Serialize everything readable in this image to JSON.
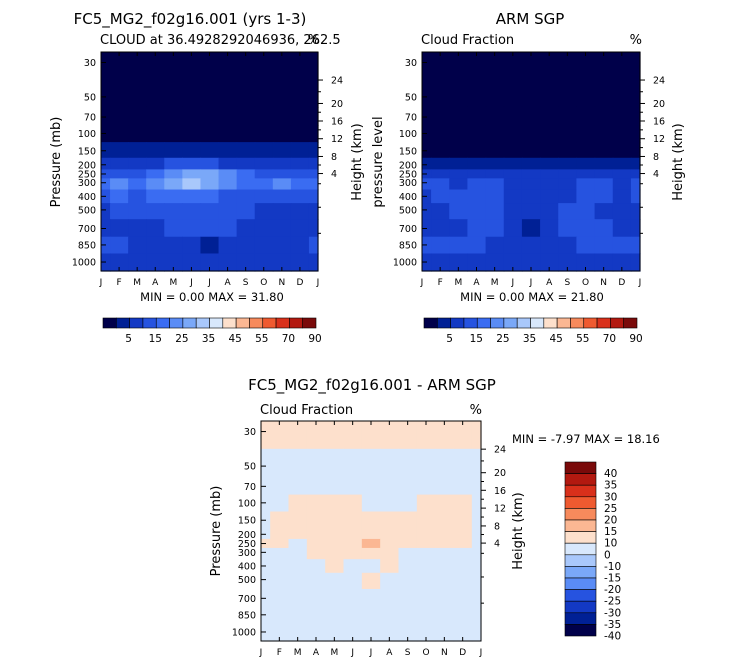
{
  "chart_data": [
    {
      "type": "heatmap",
      "title": "FC5_MG2_f02g16.001 (yrs 1-3)",
      "subtitle": "CLOUD at 36.4928292046936, 262.5",
      "units": "%",
      "xlabel": "",
      "ylabel": "Pressure (mb)",
      "ylabel_right": "Height (km)",
      "x_ticks": [
        "J",
        "F",
        "M",
        "A",
        "M",
        "J",
        "J",
        "A",
        "S",
        "O",
        "N",
        "D",
        "J"
      ],
      "y_ticks": [
        "30",
        "50",
        "70",
        "100",
        "150",
        "200",
        "250",
        "300",
        "400",
        "500",
        "700",
        "850",
        "1000"
      ],
      "y_ticks_right": [
        "24",
        "20",
        "16",
        "12",
        "8",
        "4"
      ],
      "footer": "MIN =   0.00 MAX =  31.80",
      "colorbar_labels": [
        "5",
        "15",
        "25",
        "35",
        "45",
        "55",
        "70",
        "90"
      ]
    },
    {
      "type": "heatmap",
      "title": "ARM SGP",
      "subtitle": "Cloud Fraction",
      "units": "%",
      "xlabel": "",
      "ylabel": "pressure level",
      "ylabel_right": "Height (km)",
      "x_ticks": [
        "J",
        "F",
        "M",
        "A",
        "M",
        "J",
        "J",
        "A",
        "S",
        "O",
        "N",
        "D",
        "J"
      ],
      "y_ticks": [
        "30",
        "50",
        "70",
        "100",
        "150",
        "200",
        "250",
        "300",
        "400",
        "500",
        "700",
        "850",
        "1000"
      ],
      "y_ticks_right": [
        "24",
        "20",
        "16",
        "12",
        "8",
        "4"
      ],
      "footer": "MIN =   0.00 MAX =  21.80",
      "colorbar_labels": [
        "5",
        "15",
        "25",
        "35",
        "45",
        "55",
        "70",
        "90"
      ]
    },
    {
      "type": "heatmap",
      "title": "FC5_MG2_f02g16.001 - ARM SGP",
      "subtitle": "Cloud Fraction",
      "units": "%",
      "xlabel": "",
      "ylabel": "Pressure (mb)",
      "ylabel_right": "Height (km)",
      "x_ticks": [
        "J",
        "F",
        "M",
        "A",
        "M",
        "J",
        "J",
        "A",
        "S",
        "O",
        "N",
        "D",
        "J"
      ],
      "y_ticks": [
        "30",
        "50",
        "70",
        "100",
        "150",
        "200",
        "250",
        "300",
        "400",
        "500",
        "700",
        "850",
        "1000"
      ],
      "y_ticks_right": [
        "24",
        "20",
        "16",
        "12",
        "8",
        "4"
      ],
      "footer": "MIN =  -7.97 MAX =  18.16",
      "colorbar_labels": [
        "40",
        "35",
        "30",
        "25",
        "20",
        "15",
        "10",
        "0",
        "-10",
        "-15",
        "-20",
        "-25",
        "-30",
        "-35",
        "-40"
      ]
    }
  ],
  "palettes": {
    "abs": [
      "#00004a",
      "#002095",
      "#1339c4",
      "#2653e0",
      "#3a6cf2",
      "#5a8cf6",
      "#7aa8f8",
      "#a9c8fb",
      "#d8e8fc",
      "#fde0cc",
      "#fbb793",
      "#f78a5c",
      "#ef5a30",
      "#d9301b",
      "#b31910",
      "#7a0a0a"
    ],
    "diff": [
      "#7a0a0a",
      "#b31910",
      "#d9301b",
      "#ef5a30",
      "#f78a5c",
      "#fbb793",
      "#fde0cc",
      "#d8e8fc",
      "#a9c8fb",
      "#7aa8f8",
      "#5a8cf6",
      "#2653e0",
      "#1339c4",
      "#002095",
      "#00004a"
    ]
  },
  "fields": {
    "model": [
      [
        0,
        0,
        0,
        0,
        0,
        0,
        0,
        0,
        0,
        0,
        0,
        0,
        0
      ],
      [
        0,
        0,
        0,
        0,
        0,
        0,
        0,
        0,
        0,
        0,
        0,
        0,
        0
      ],
      [
        0,
        0,
        0,
        0,
        0,
        0,
        0,
        0,
        0,
        0,
        0,
        0,
        0
      ],
      [
        0,
        0,
        0,
        0,
        0,
        0,
        0,
        0,
        0,
        0,
        0,
        0,
        0
      ],
      [
        1,
        1,
        1,
        1,
        1,
        1,
        1,
        1,
        1,
        1,
        1,
        1,
        1
      ],
      [
        2,
        2,
        2,
        2,
        3,
        3,
        3,
        2,
        2,
        2,
        2,
        2,
        2
      ],
      [
        3,
        3,
        3,
        4,
        5,
        6,
        6,
        5,
        4,
        3,
        3,
        3,
        3
      ],
      [
        4,
        5,
        4,
        5,
        6,
        7,
        6,
        5,
        4,
        4,
        5,
        4,
        4
      ],
      [
        3,
        4,
        3,
        4,
        4,
        4,
        4,
        3,
        3,
        3,
        3,
        3,
        3
      ],
      [
        2,
        3,
        3,
        3,
        3,
        3,
        3,
        3,
        3,
        2,
        2,
        2,
        2
      ],
      [
        2,
        2,
        2,
        2,
        3,
        3,
        3,
        3,
        2,
        2,
        2,
        2,
        2
      ],
      [
        3,
        3,
        2,
        2,
        2,
        2,
        1,
        2,
        2,
        2,
        2,
        2,
        3
      ],
      [
        2,
        2,
        2,
        2,
        2,
        2,
        2,
        2,
        2,
        2,
        2,
        2,
        2
      ]
    ],
    "obs": [
      [
        0,
        0,
        0,
        0,
        0,
        0,
        0,
        0,
        0,
        0,
        0,
        0,
        0
      ],
      [
        0,
        0,
        0,
        0,
        0,
        0,
        0,
        0,
        0,
        0,
        0,
        0,
        0
      ],
      [
        0,
        0,
        0,
        0,
        0,
        0,
        0,
        0,
        0,
        0,
        0,
        0,
        0
      ],
      [
        0,
        0,
        0,
        0,
        0,
        0,
        0,
        0,
        0,
        0,
        0,
        0,
        0
      ],
      [
        0,
        0,
        0,
        0,
        0,
        0,
        0,
        0,
        0,
        0,
        0,
        0,
        0
      ],
      [
        1,
        1,
        1,
        1,
        1,
        1,
        1,
        1,
        1,
        1,
        1,
        1,
        1
      ],
      [
        2,
        2,
        2,
        2,
        2,
        2,
        2,
        2,
        2,
        2,
        2,
        2,
        2
      ],
      [
        3,
        3,
        2,
        3,
        3,
        2,
        2,
        2,
        2,
        3,
        3,
        2,
        3
      ],
      [
        2,
        3,
        3,
        3,
        3,
        2,
        2,
        2,
        2,
        3,
        3,
        2,
        3
      ],
      [
        2,
        2,
        3,
        3,
        3,
        2,
        2,
        2,
        3,
        3,
        2,
        2,
        2
      ],
      [
        2,
        2,
        2,
        3,
        3,
        2,
        1,
        2,
        3,
        3,
        3,
        2,
        2
      ],
      [
        3,
        3,
        3,
        3,
        2,
        2,
        2,
        2,
        2,
        3,
        3,
        3,
        3
      ],
      [
        2,
        2,
        2,
        2,
        2,
        2,
        2,
        2,
        2,
        2,
        2,
        2,
        2
      ]
    ],
    "diff": [
      [
        6,
        6,
        6,
        6,
        6,
        6,
        6,
        6,
        6,
        6,
        6,
        6,
        6
      ],
      [
        7,
        7,
        7,
        7,
        7,
        7,
        7,
        7,
        7,
        7,
        7,
        7,
        7
      ],
      [
        7,
        7,
        7,
        7,
        7,
        7,
        7,
        7,
        7,
        7,
        7,
        7,
        7
      ],
      [
        7,
        7,
        6,
        6,
        6,
        6,
        7,
        7,
        7,
        6,
        6,
        6,
        7
      ],
      [
        7,
        6,
        6,
        6,
        6,
        6,
        6,
        6,
        6,
        6,
        6,
        6,
        7
      ],
      [
        7,
        6,
        6,
        6,
        6,
        6,
        6,
        6,
        6,
        6,
        6,
        6,
        7
      ],
      [
        6,
        6,
        7,
        6,
        6,
        6,
        5,
        6,
        6,
        6,
        6,
        6,
        7
      ],
      [
        7,
        7,
        7,
        6,
        6,
        6,
        6,
        6,
        7,
        7,
        7,
        7,
        7
      ],
      [
        7,
        7,
        7,
        7,
        6,
        7,
        7,
        6,
        7,
        7,
        7,
        7,
        7
      ],
      [
        7,
        7,
        7,
        7,
        7,
        7,
        6,
        7,
        7,
        7,
        7,
        7,
        7
      ],
      [
        7,
        7,
        7,
        7,
        7,
        7,
        7,
        7,
        7,
        7,
        7,
        7,
        7
      ],
      [
        7,
        7,
        7,
        7,
        7,
        7,
        7,
        7,
        7,
        7,
        7,
        7,
        7
      ],
      [
        7,
        7,
        7,
        7,
        7,
        7,
        7,
        7,
        7,
        7,
        7,
        7,
        7
      ]
    ]
  }
}
